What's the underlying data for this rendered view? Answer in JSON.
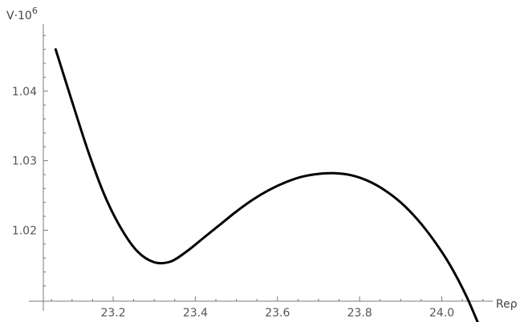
{
  "chart_data": {
    "type": "line",
    "title": "",
    "xlabel": "Reρ",
    "ylabel_base": "V·10",
    "ylabel_exp": "6",
    "xlim": [
      23.03,
      24.12
    ],
    "ylim": [
      1.0098,
      1.0485
    ],
    "x_ticks": [
      {
        "value": 23.2,
        "label": "23.2"
      },
      {
        "value": 23.4,
        "label": "23.4"
      },
      {
        "value": 23.6,
        "label": "23.6"
      },
      {
        "value": 23.8,
        "label": "23.8"
      },
      {
        "value": 24.0,
        "label": "24.0"
      }
    ],
    "y_ticks": [
      {
        "value": 1.02,
        "label": "1.02"
      },
      {
        "value": 1.03,
        "label": "1.03"
      },
      {
        "value": 1.04,
        "label": "1.04"
      }
    ],
    "series": [
      {
        "color": "#000000",
        "x": [
          23.06,
          23.1,
          23.14,
          23.18,
          23.22,
          23.26,
          23.3,
          23.34,
          23.38,
          23.42,
          23.46,
          23.5,
          23.54,
          23.58,
          23.62,
          23.66,
          23.7,
          23.74,
          23.78,
          23.82,
          23.86,
          23.9,
          23.94,
          23.98,
          24.02,
          24.06,
          24.1
        ],
        "y": [
          1.046,
          1.0385,
          1.0312,
          1.0249,
          1.0202,
          1.0169,
          1.0154,
          1.0155,
          1.017,
          1.0189,
          1.0208,
          1.0227,
          1.0244,
          1.0258,
          1.0269,
          1.0277,
          1.0281,
          1.0282,
          1.0279,
          1.0271,
          1.0258,
          1.024,
          1.0216,
          1.0186,
          1.015,
          1.0105,
          1.005
        ]
      }
    ]
  }
}
